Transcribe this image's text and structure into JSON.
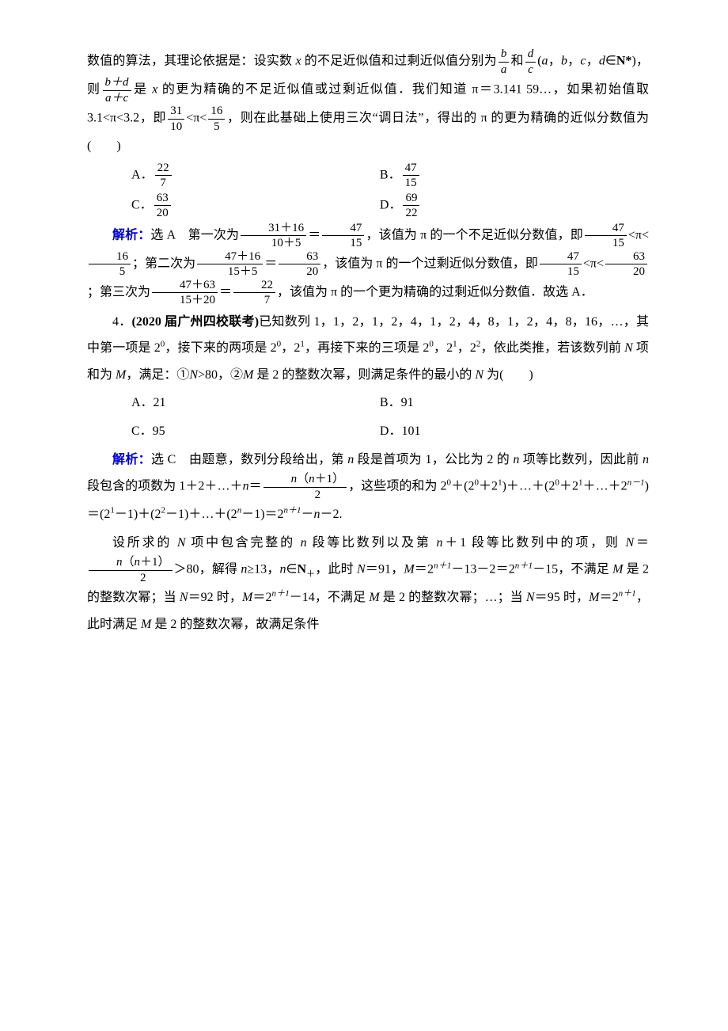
{
  "para1_a": "数值的算法，其理论依据是：设实数 ",
  "para1_x": "x",
  "para1_b": " 的不足近似值和过剩近似值分别为",
  "para1_f1_num": "b",
  "para1_f1_den": "a",
  "para1_c": "和",
  "para1_f2_num": "d",
  "para1_f2_den": "c",
  "para1_d": "(",
  "para1_ab": "a",
  "para1_e": "，",
  "para1_ab2": "b",
  "para1_e2": "，",
  "para2_a": "c",
  "para2_b": "，",
  "para2_c": "d",
  "para2_d": "∈",
  "para2_nstar": "N*",
  "para2_e": ")，则",
  "para2_f_num": "b＋d",
  "para2_f_den": "a＋c",
  "para2_f2": "是 ",
  "para2_x": "x",
  "para2_g": " 的更为精确的不足近似值或过剩近似值．我们知道 π＝3.141 59…，如果初始值取 3.1<π<3.2，即",
  "para2_f3_num": "31",
  "para2_f3_den": "10",
  "para2_h": "<π<",
  "para2_f4_num": "16",
  "para2_f4_den": "5",
  "para2_i": "，则在此基础上使用三次“调日法”，得出的 π 的更为精确的近似分数值为(　　)",
  "optA_label": "A．",
  "optA_num": "22",
  "optA_den": "7",
  "optB_label": "B．",
  "optB_num": "47",
  "optB_den": "15",
  "optC_label": "C．",
  "optC_num": "63",
  "optC_den": "20",
  "optD_label": "D．",
  "optD_num": "69",
  "optD_den": "22",
  "sol1_label": "解析：",
  "sol1_a": "选 A　第一次为",
  "sol1_f1_num": "31＋16",
  "sol1_f1_den": "10＋5",
  "sol1_eq": "＝",
  "sol1_f2_num": "47",
  "sol1_f2_den": "15",
  "sol1_b": "，该值为 π 的一个不足近似分数值，即",
  "sol1_f3_num": "47",
  "sol1_f3_den": "15",
  "sol1_c": "<π<",
  "sol1_f4_num": "16",
  "sol1_f4_den": "5",
  "sol1_d": "；第二次为",
  "sol1_f5_num": "47＋16",
  "sol1_f5_den": "15＋5",
  "sol1_f6_num": "63",
  "sol1_f6_den": "20",
  "sol1_e": "，该值为 π 的一个过剩近似分数值，即",
  "sol1_f7_num": "47",
  "sol1_f7_den": "15",
  "sol1_f8_num": "63",
  "sol1_f8_den": "20",
  "sol1_f": "；第三次为",
  "sol1_f9_num": "47＋63",
  "sol1_f9_den": "15＋20",
  "sol1_f10_num": "22",
  "sol1_f10_den": "7",
  "sol1_g": "，该值为 π 的一个更为精确的过剩近似分数值．故选 A．",
  "q4_a": "4．",
  "q4_src": "(2020 届广州四校联考)",
  "q4_b": "已知数列 1，1，2，1，2，4，1，2，4，8，1，2，4，8，16，…，其中第一项是 2",
  "q4_sup0": "0",
  "q4_c": "，接下来的两项是 2",
  "q4_d": "，2",
  "q4_sup1": "1",
  "q4_e": "，再接下来的三项是 2",
  "q4_f": "，2",
  "q4_g": "，2",
  "q4_sup2": "2",
  "q4_h": "，依此类推，若该数列前 ",
  "q4_N": "N",
  "q4_i": " 项和为 ",
  "q4_M": "M",
  "q4_j": "，满足：①",
  "q4_k": ">80，②",
  "q4_l": " 是 2 的整数次幂，则满足条件的最小的 ",
  "q4_m": " 为(　　)",
  "opt2A": "A．21",
  "opt2B": "B．91",
  "opt2C": "C．95",
  "opt2D": "D．101",
  "sol2_label": "解析：",
  "sol2_a": "选 C　由题意，数列分段给出，第 ",
  "sol2_n": "n",
  "sol2_b": " 段是首项为 1，公比为 2 的 ",
  "sol2_c": " 项等比数列，因此前 ",
  "sol2_d": " 段包含的项数为 1＋2＋…＋",
  "sol2_e": "＝",
  "sol2_ff_num_a": "n",
  "sol2_ff_num_b": "（",
  "sol2_ff_num_c": "n",
  "sol2_ff_num_d": "＋1）",
  "sol2_ff_den": "2",
  "sol2_f": "，这些项的和为 2",
  "sol2_g": "＋(2",
  "sol2_h": "＋2",
  "sol2_i": ")＋…＋(2",
  "sol2_j": "＋2",
  "sol2_k": "＋…＋2",
  "sol2_nm1": "n－1",
  "sol2_l": ")＝(2",
  "sol2_m": "－1)＋(2",
  "sol2_o": "－1)＋…＋(2",
  "sol2_p": "－1)＝2",
  "sol2_np1": "n＋1",
  "sol2_q": "－",
  "sol2_r": "－2.",
  "sol3_a": "设所求的 ",
  "sol3_b": " 项中包含完整的 ",
  "sol3_c": " 段等比数列以及第 ",
  "sol3_d": "＋1 段等比数列中的项，则",
  "sol3_N": "N",
  "sol3_eq": "＝",
  "sol3_gt": "＞80，解得 ",
  "sol3_n": "n",
  "sol3_ge": "≥13，",
  "sol3_e": "∈",
  "sol3_Nplus": "N",
  "sol3_plus": "＋",
  "sol3_f": "，此时 ",
  "sol3_g": "＝91，",
  "sol3_M": "M",
  "sol3_h": "＝2",
  "sol3_i": "－13－2＝2",
  "sol3_j": "－15，不满足 ",
  "sol3_k": " 是 2 的整数次幂；当 ",
  "sol3_l": "＝92 时，",
  "sol3_m2": "＝2",
  "sol3_o": "－14，不满足 ",
  "sol3_p": " 是 2 的整数次幂；…；当 ",
  "sol3_q": "＝95 时，",
  "sol3_r": "＝2",
  "sol3_s": "，此时满足 ",
  "sol3_t": " 是 2 的整数次幂，故满足条件"
}
